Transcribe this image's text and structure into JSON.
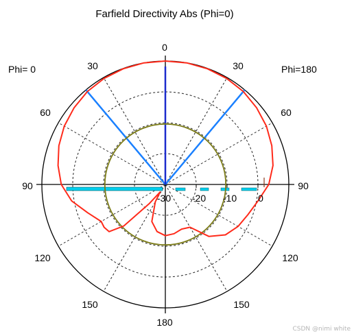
{
  "chart_data": {
    "type": "polar",
    "title": "Farfield Directivity Abs (Phi=0)",
    "left_side_label": "Phi=  0",
    "right_side_label": "Phi=180",
    "angle_labels": {
      "top": "0",
      "upper_left": "30",
      "upper_right": "30",
      "left_60": "60",
      "right_60": "60",
      "left_90": "90",
      "right_90": "90",
      "left_120": "120",
      "right_120": "120",
      "left_150": "150",
      "right_150": "150",
      "bottom": "180"
    },
    "radial_tick_labels": [
      "-30",
      "-20",
      "-10",
      "0"
    ],
    "radial_range_db": [
      -40,
      0
    ],
    "grid": true,
    "series": [
      {
        "role": "main-lobe-pattern",
        "color": "#ff2a1a",
        "theta_deg": [
          -180,
          -170,
          -160,
          -150,
          -145,
          -140,
          -135,
          -130,
          -125,
          -120,
          -110,
          -100,
          -90,
          -80,
          -70,
          -60,
          -50,
          -40,
          -30,
          -20,
          -10,
          0,
          10,
          20,
          30,
          40,
          50,
          60,
          70,
          80,
          90,
          100,
          110,
          120,
          130,
          140,
          150,
          160,
          170,
          180
        ],
        "directivity_db": [
          -23.4,
          -24.5,
          -27.2,
          -33.5,
          -37,
          -32,
          -21,
          -16.2,
          -15.8,
          -16,
          -13.2,
          -9.2,
          -6.3,
          -4.7,
          -3.3,
          -2.2,
          -1.4,
          -0.7,
          -0.3,
          -0.1,
          0,
          0,
          0,
          -0.1,
          -0.3,
          -0.7,
          -1.4,
          -2.2,
          -3.3,
          -4.6,
          -6.5,
          -9.5,
          -11.5,
          -12.8,
          -14.6,
          -18,
          -24,
          -24.6,
          -23.8,
          -23.4
        ]
      },
      {
        "role": "3dB-angular-width-circle",
        "color": "#7b7b16",
        "directivity_db": -20.4
      }
    ],
    "main_lobe_direction_deg": 0,
    "main_lobe_direction_color": "#1a2acc",
    "angular_width_markers_deg": [
      -40,
      40
    ],
    "angular_width_marker_color": "#1a80ff",
    "side_lobe_level_marker_color": "#00d0ee",
    "watermark": "CSDN @nimi white"
  }
}
